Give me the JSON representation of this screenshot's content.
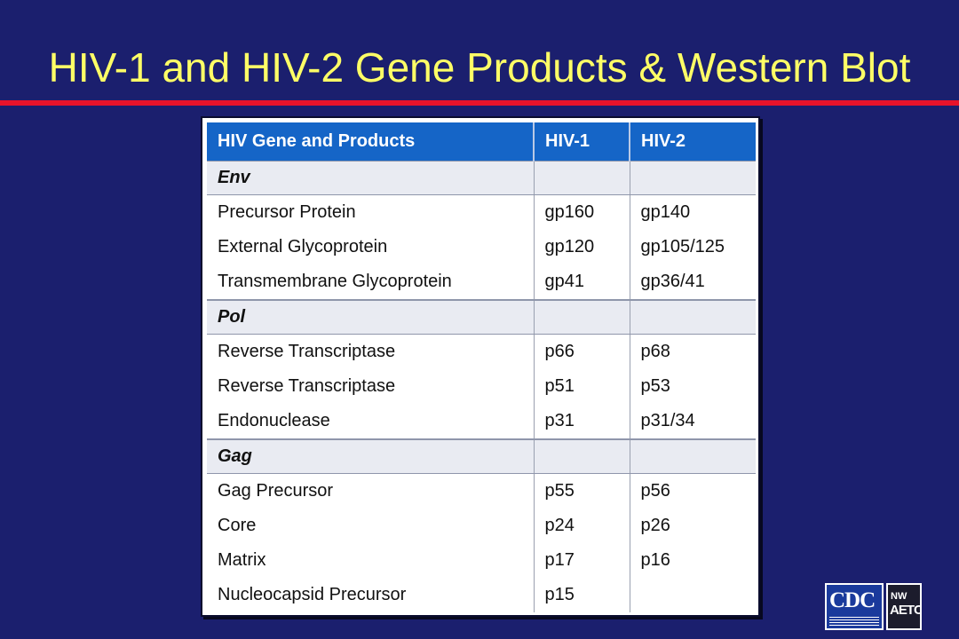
{
  "slide": {
    "title": "HIV-1 and HIV-2 Gene Products & Western Blot"
  },
  "table": {
    "headers": [
      "HIV Gene and Products",
      "HIV-1",
      "HIV-2"
    ],
    "sections": [
      {
        "name": "Env",
        "rows": [
          [
            "Precursor Protein",
            "gp160",
            "gp140"
          ],
          [
            "External Glycoprotein",
            "gp120",
            "gp105/125"
          ],
          [
            "Transmembrane Glycoprotein",
            "gp41",
            "gp36/41"
          ]
        ]
      },
      {
        "name": "Pol",
        "rows": [
          [
            "Reverse Transcriptase",
            "p66",
            "p68"
          ],
          [
            "Reverse Transcriptase",
            "p51",
            "p53"
          ],
          [
            "Endonuclease",
            "p31",
            "p31/34"
          ]
        ]
      },
      {
        "name": "Gag",
        "rows": [
          [
            "Gag Precursor",
            "p55",
            "p56"
          ],
          [
            "Core",
            "p24",
            "p26"
          ],
          [
            "Matrix",
            "p17",
            "p16"
          ],
          [
            "Nucleocapsid Precursor",
            "p15",
            ""
          ]
        ]
      }
    ]
  },
  "logos": {
    "cdc": "CDC",
    "aetc_top": "NW",
    "aetc_main": "AETC"
  },
  "colors": {
    "background": "#1b1f6e",
    "title": "#ffff66",
    "rule": "#e8132a",
    "header": "#1565c7"
  }
}
